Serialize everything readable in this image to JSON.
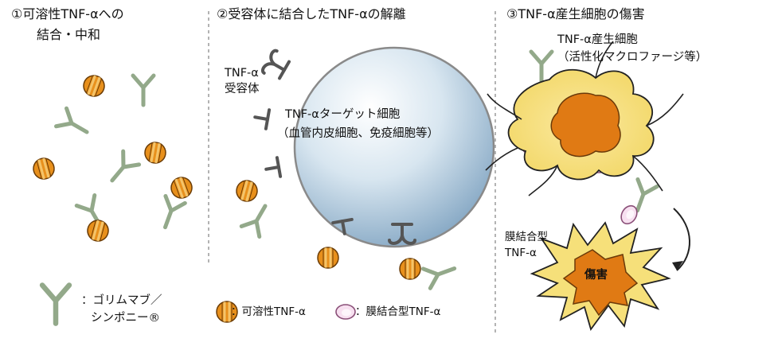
{
  "panel1": {
    "title_line1": "①可溶性TNF-αへの",
    "title_line2": "結合・中和"
  },
  "panel2": {
    "title": "②受容体に結合したTNF-αの解離",
    "receptor_label_1": "TNF-α",
    "receptor_label_2": "受容体",
    "target_cell_label_1": "TNF-αターゲット細胞",
    "target_cell_label_2": "（血管内皮細胞、免疫細胞等）"
  },
  "panel3": {
    "title": "③TNF-α産生細胞の傷害",
    "producer_label_1": "TNF-α産生細胞",
    "producer_label_2": "（活性化マクロファージ等）",
    "membrane_label_1": "膜結合型",
    "membrane_label_2": "TNF-α",
    "damage_label": "傷害"
  },
  "legend": {
    "antibody_label_1": "：ゴリムマブ／",
    "antibody_label_2": "シンポニー®",
    "soluble_label": "：可溶性TNF-α",
    "membrane_label": "：膜結合型TNF-α"
  },
  "colors": {
    "antibody": "#93a98a",
    "antibody_stroke": "#5d6e57",
    "soluble_fill": "#e8901c",
    "soluble_band": "#f4c46a",
    "membrane_fill": "#f7e0f0",
    "membrane_stroke": "#8a4f78",
    "cell_body": "#f6e07a",
    "nucleus": "#e07a14",
    "receptor": "#555555"
  }
}
